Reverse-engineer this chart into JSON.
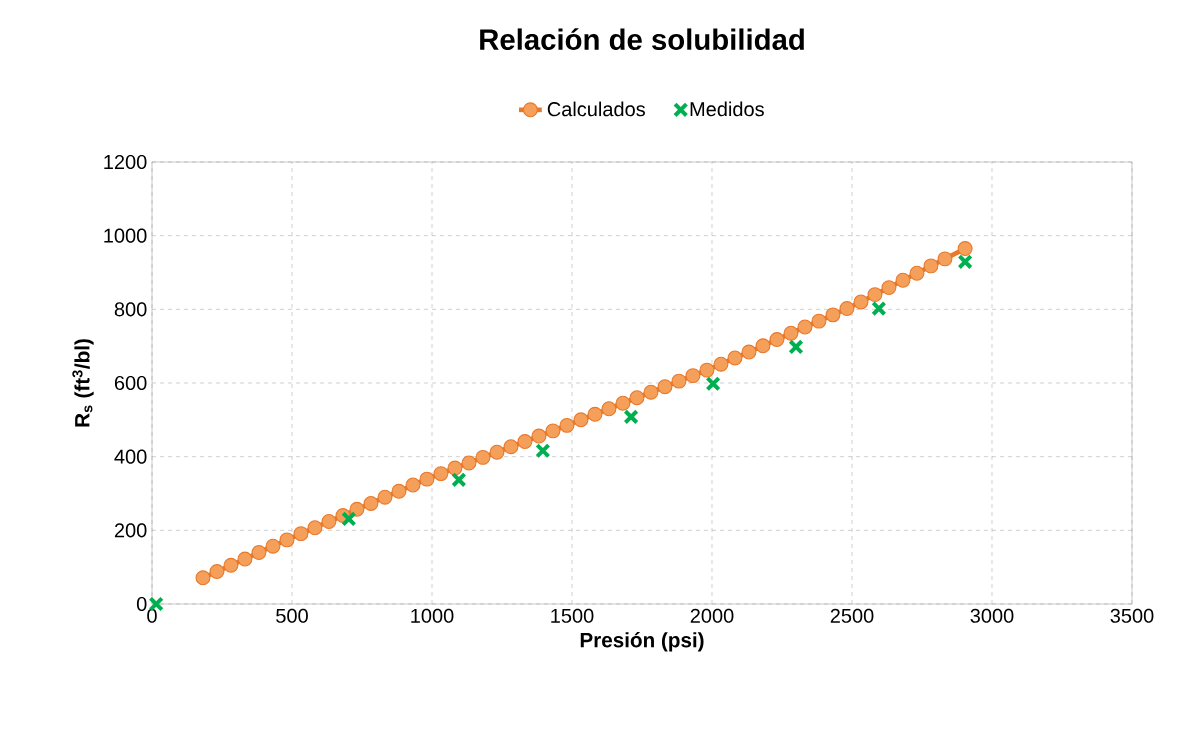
{
  "chart_data": {
    "type": "line",
    "title": "Relación de solubilidad",
    "xlabel": "Presión (psi)",
    "ylabel": "R$_{s}$ (ft$^{3}$/bl)",
    "xlim": [
      0,
      3500
    ],
    "xticks": [
      0,
      500,
      1000,
      1500,
      2000,
      2500,
      3000,
      3500
    ],
    "ylim": [
      0,
      1200
    ],
    "yticks": [
      0,
      200,
      400,
      600,
      800,
      1000,
      1200
    ],
    "grid": true,
    "legend": "top",
    "series": [
      {
        "name": "Calculados",
        "color": "#e8782a",
        "marker": "circle",
        "line_style": "solid",
        "x": [
          182,
          232,
          282,
          332,
          382,
          432,
          482,
          532,
          582,
          632,
          682,
          732,
          782,
          832,
          882,
          932,
          982,
          1032,
          1082,
          1132,
          1182,
          1232,
          1282,
          1332,
          1382,
          1432,
          1482,
          1532,
          1582,
          1632,
          1682,
          1732,
          1782,
          1832,
          1882,
          1932,
          1982,
          2032,
          2082,
          2132,
          2182,
          2232,
          2282,
          2332,
          2382,
          2432,
          2482,
          2532,
          2582,
          2632,
          2682,
          2732,
          2782,
          2832,
          2904
        ],
        "values": [
          71,
          88,
          105,
          122,
          140,
          157,
          174,
          191,
          207,
          224,
          240,
          257,
          273,
          290,
          306,
          323,
          339,
          354,
          369,
          383,
          398,
          412,
          427,
          441,
          456,
          470,
          485,
          500,
          515,
          530,
          545,
          560,
          575,
          590,
          605,
          620,
          635,
          651,
          668,
          684,
          701,
          718,
          735,
          752,
          768,
          785,
          802,
          820,
          840,
          859,
          879,
          898,
          918,
          937,
          965
        ]
      },
      {
        "name": "Medidos",
        "type": "scatter",
        "color": "#00b050",
        "marker": "cross",
        "x": [
          15,
          703,
          1096,
          1396,
          1711,
          2004,
          2300,
          2596,
          2904
        ],
        "values": [
          0,
          231,
          337,
          416,
          508,
          598,
          698,
          802,
          929
        ]
      }
    ]
  }
}
